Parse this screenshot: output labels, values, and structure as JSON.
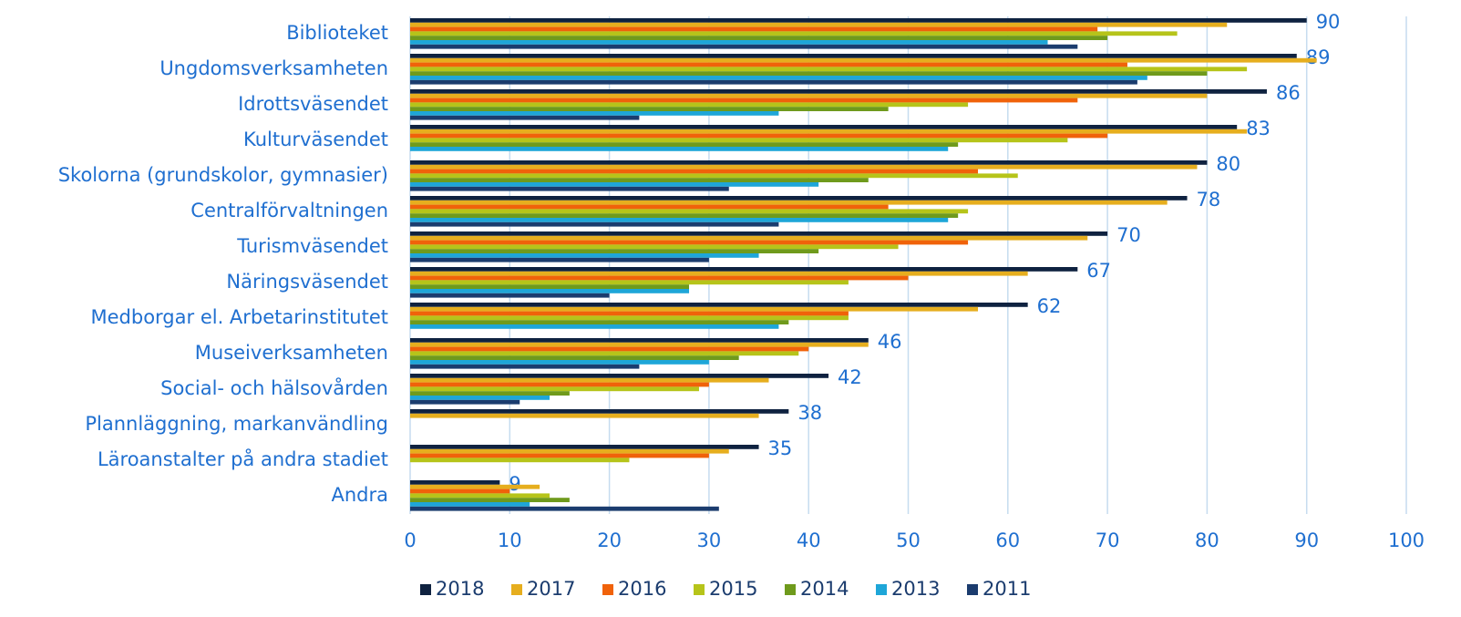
{
  "chart_data": {
    "type": "hbar",
    "categories": [
      "Biblioteket",
      "Ungdomsverksamheten",
      "Idrottsväsendet",
      "Kulturväsendet",
      "Skolorna (grundskolor, gymnasier)",
      "Centralförvaltningen",
      "Turismväsendet",
      "Näringsväsendet",
      "Medborgar el. Arbetarinstitutet",
      "Museiverksamheten",
      "Social- och hälsovården",
      "Plannläggning, markanvändling",
      "Läroanstalter på andra stadiet",
      "Andra"
    ],
    "series": [
      {
        "name": "2018",
        "color": "#0f2240",
        "values": [
          90,
          89,
          86,
          83,
          80,
          78,
          70,
          67,
          62,
          46,
          42,
          38,
          35,
          9
        ]
      },
      {
        "name": "2017",
        "color": "#e6ae1e",
        "values": [
          82,
          91,
          80,
          84,
          79,
          76,
          68,
          62,
          57,
          46,
          36,
          35,
          32,
          13
        ]
      },
      {
        "name": "2016",
        "color": "#f0620a",
        "values": [
          69,
          72,
          67,
          70,
          57,
          48,
          56,
          50,
          44,
          40,
          30,
          null,
          30,
          10
        ]
      },
      {
        "name": "2015",
        "color": "#b6c41a",
        "values": [
          77,
          84,
          56,
          66,
          61,
          56,
          49,
          44,
          44,
          39,
          29,
          null,
          22,
          14
        ]
      },
      {
        "name": "2014",
        "color": "#6f9a1c",
        "values": [
          70,
          80,
          48,
          55,
          46,
          55,
          41,
          28,
          38,
          33,
          16,
          null,
          null,
          16
        ]
      },
      {
        "name": "2013",
        "color": "#1ea6d8",
        "values": [
          64,
          74,
          37,
          54,
          41,
          54,
          35,
          28,
          37,
          30,
          14,
          null,
          null,
          12
        ]
      },
      {
        "name": "2011",
        "color": "#1b3c6e",
        "values": [
          67,
          73,
          23,
          null,
          32,
          37,
          30,
          20,
          null,
          23,
          11,
          null,
          null,
          31
        ]
      }
    ],
    "xlim": [
      0,
      100
    ],
    "xticks": [
      0,
      10,
      20,
      30,
      40,
      50,
      60,
      70,
      80,
      90,
      100
    ],
    "grid": true,
    "legend": "bottom"
  }
}
